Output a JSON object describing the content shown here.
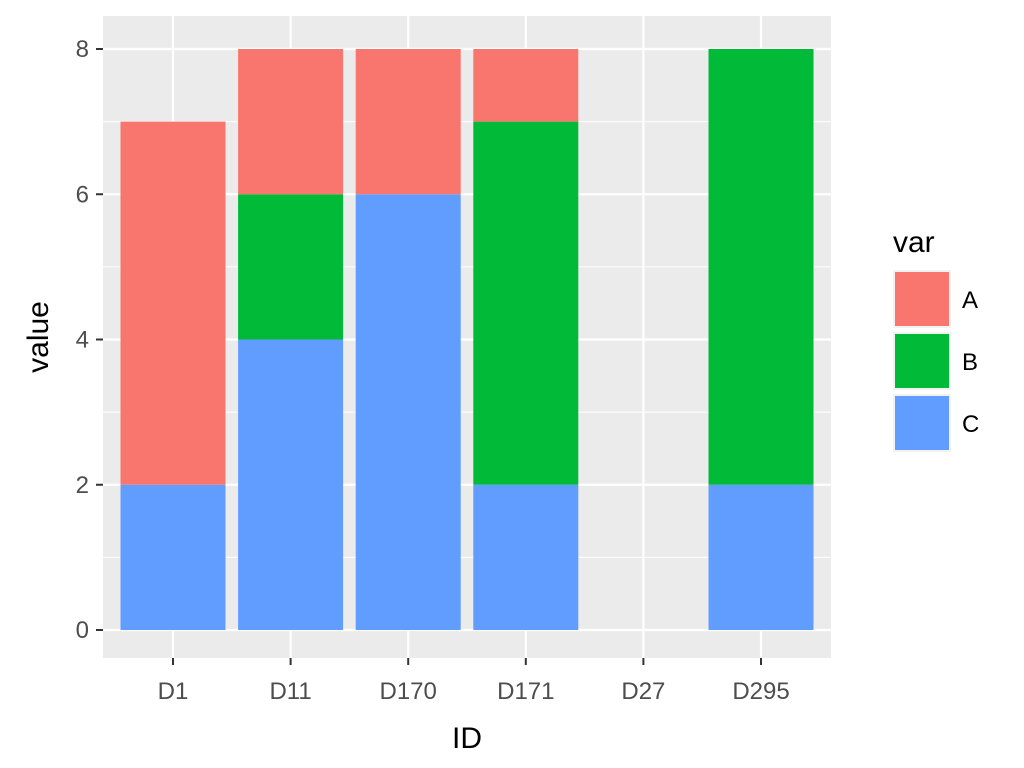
{
  "chart_data": {
    "type": "bar",
    "stacked": true,
    "categories": [
      "D1",
      "D11",
      "D170",
      "D171",
      "D27",
      "D295"
    ],
    "series": [
      {
        "name": "A",
        "color": "#F8766D",
        "values": [
          5,
          2,
          2,
          1,
          0,
          0
        ]
      },
      {
        "name": "B",
        "color": "#00BA38",
        "values": [
          0,
          2,
          0,
          5,
          0,
          6
        ]
      },
      {
        "name": "C",
        "color": "#619CFF",
        "values": [
          2,
          4,
          6,
          2,
          0,
          2
        ]
      }
    ],
    "stack_order_bottom_to_top": [
      "C",
      "B",
      "A"
    ],
    "title": "",
    "xlabel": "ID",
    "ylabel": "value",
    "ylim": [
      0,
      8
    ],
    "yticks": [
      0,
      2,
      4,
      6,
      8
    ],
    "grid": true,
    "legend": {
      "title": "var",
      "placement": "right"
    },
    "panel_background": "#EBEBEB",
    "gridline_color": "#FFFFFF"
  }
}
